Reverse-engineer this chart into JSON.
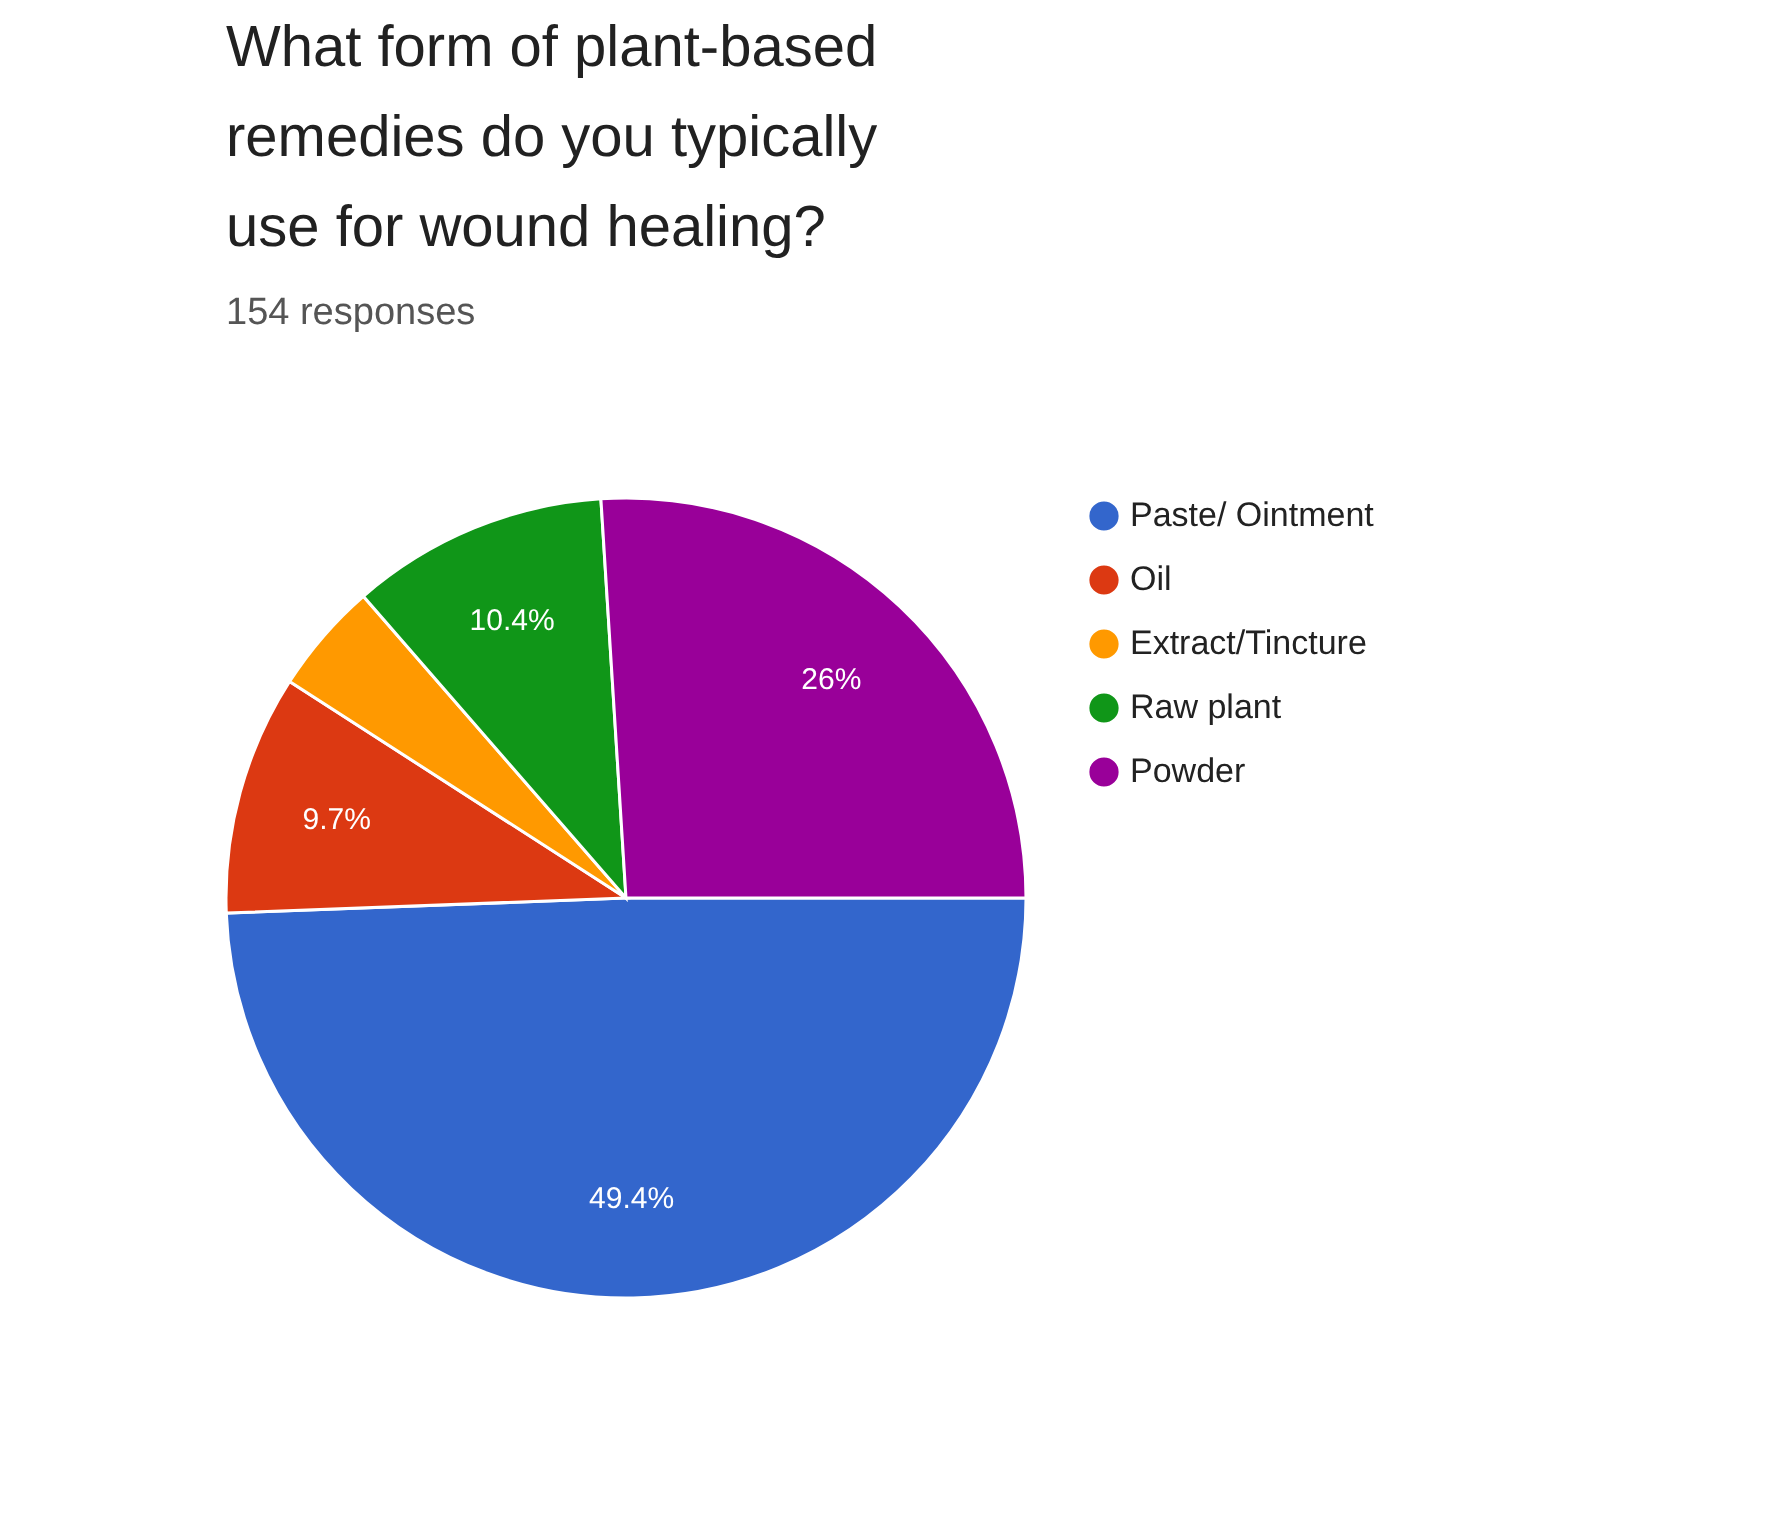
{
  "chart_data": {
    "type": "pie",
    "title": "What form of plant-based remedies do you typically use for wound healing?",
    "subtitle": "154 responses",
    "categories": [
      "Paste/ Ointment",
      "Oil",
      "Extract/Tincture",
      "Raw plant",
      "Powder"
    ],
    "values": [
      49.4,
      9.7,
      4.5,
      10.4,
      26
    ],
    "colors": [
      "#3366cc",
      "#dc3912",
      "#ff9900",
      "#109618",
      "#990099"
    ],
    "value_labels": [
      "49.4%",
      "9.7%",
      null,
      "10.4%",
      "26%"
    ],
    "legend": "right"
  }
}
